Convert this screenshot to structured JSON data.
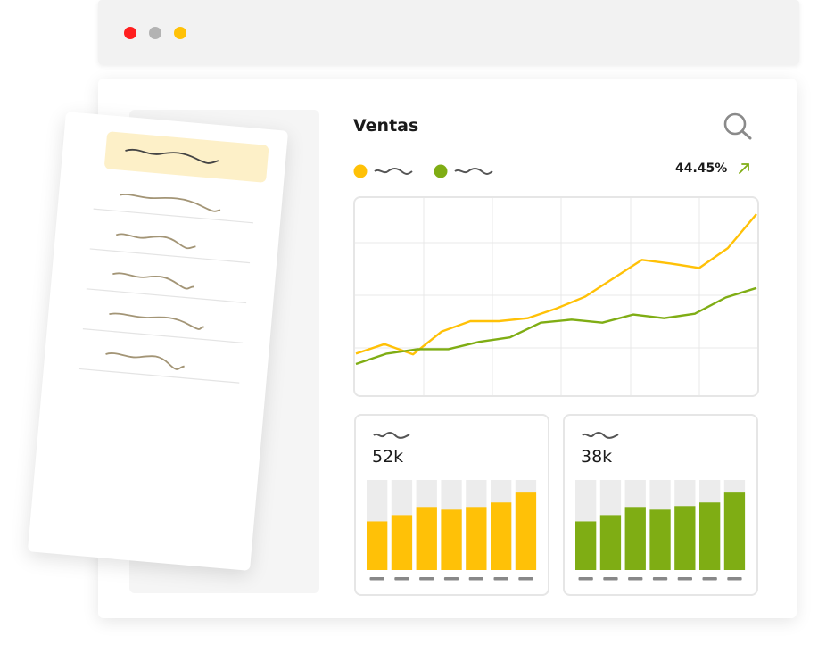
{
  "window": {
    "controls": [
      {
        "name": "close",
        "color": "#ff1f1f"
      },
      {
        "name": "minimize",
        "color": "#b3b3b3"
      },
      {
        "name": "maximize",
        "color": "#ffc107"
      }
    ]
  },
  "header": {
    "title": "Ventas",
    "change_percent": "44.45%",
    "search_icon": "search-icon",
    "trend_icon": "arrow-up-right-icon"
  },
  "legend": [
    {
      "color": "#ffc107"
    },
    {
      "color": "#7fad14"
    }
  ],
  "colors": {
    "yellow": "#ffc107",
    "green": "#7fad14",
    "highlight": "#fdf0c8",
    "scribble": "#a39576",
    "placeholder": "#555555",
    "bar_bg": "#ececec",
    "grid": "#e8e8e8"
  },
  "chart_data": [
    {
      "type": "line",
      "series": [
        {
          "color": "#ffc107",
          "values": [
            0.14,
            0.27,
            0.13,
            0.44,
            0.58,
            0.58,
            0.62,
            0.75,
            0.91,
            1.16,
            1.41,
            1.36,
            1.3,
            1.57,
            2.03
          ]
        },
        {
          "color": "#7fad14",
          "values": [
            0.0,
            0.14,
            0.2,
            0.2,
            0.3,
            0.36,
            0.56,
            0.6,
            0.56,
            0.67,
            0.62,
            0.68,
            0.9,
            1.03
          ]
        }
      ]
    },
    {
      "type": "bar",
      "value_label": "52k",
      "color": "#ffc107",
      "values": [
        54,
        61,
        70,
        67,
        70,
        75,
        86
      ]
    },
    {
      "type": "bar",
      "value_label": "38k",
      "color": "#7fad14",
      "values": [
        54,
        61,
        70,
        67,
        71,
        75,
        86
      ]
    }
  ]
}
